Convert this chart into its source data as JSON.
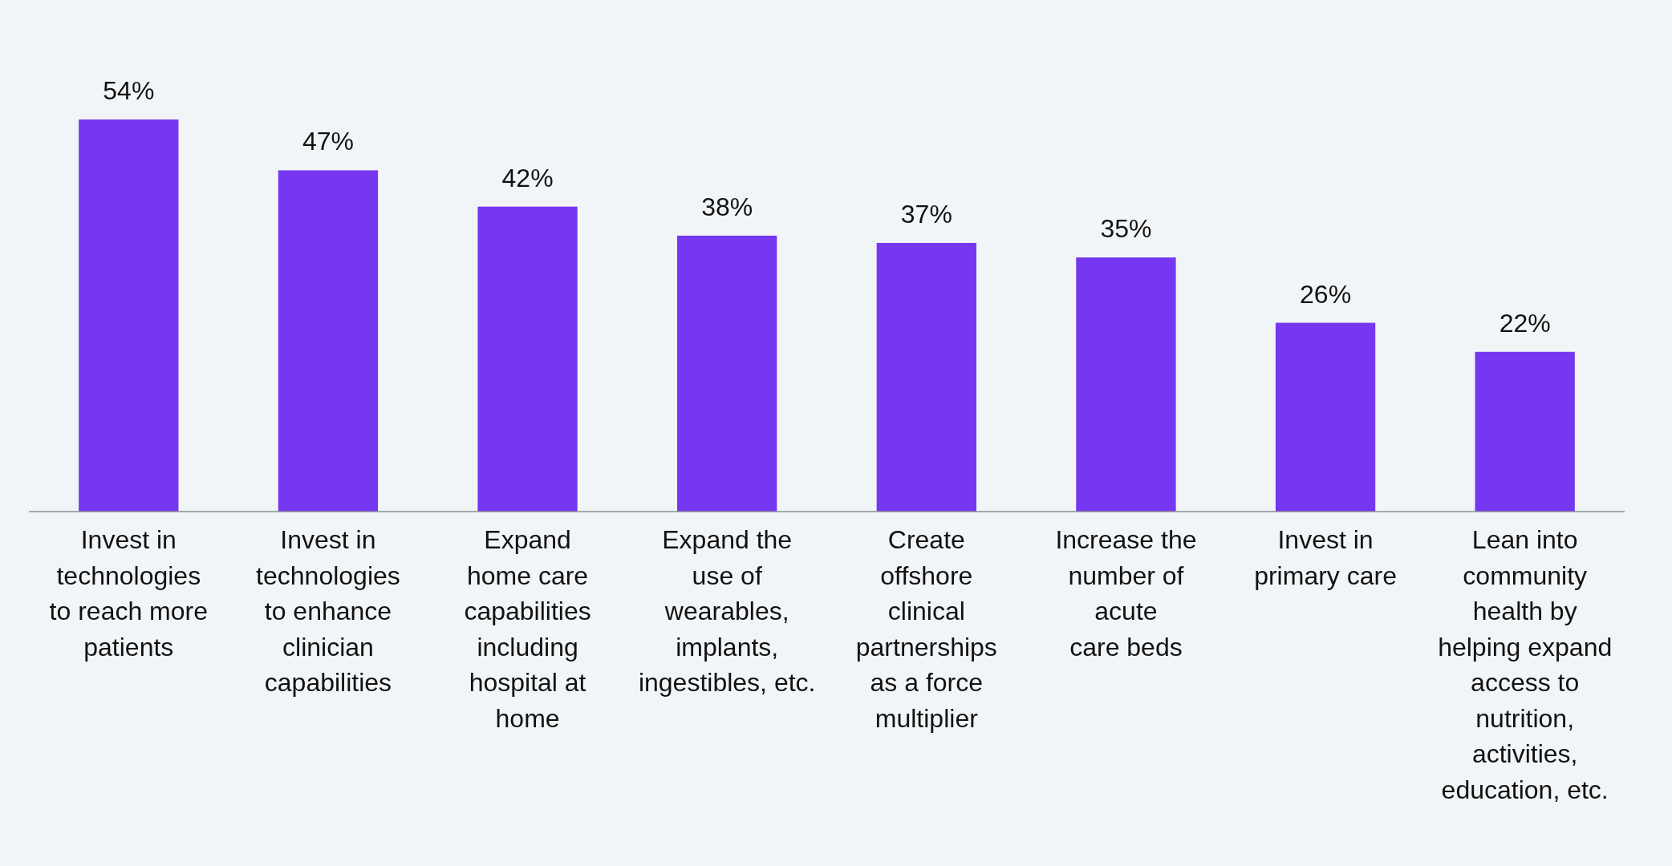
{
  "chart_data": {
    "type": "bar",
    "categories": [
      "Invest in\ntechnologies\nto reach more\npatients",
      "Invest in\ntechnologies\nto enhance\nclinician\ncapabilities",
      "Expand\nhome care\ncapabilities\nincluding\nhospital at\nhome",
      "Expand the\nuse of\nwearables,\nimplants,\ningestibles, etc.",
      "Create\noffshore\nclinical\npartnerships\nas a force\nmultiplier",
      "Increase the\nnumber of\nacute\ncare beds",
      "Invest in\nprimary care",
      "Lean into\ncommunity\nhealth by\nhelping expand\naccess to\nnutrition,\nactivities,\neducation, etc."
    ],
    "values": [
      54,
      47,
      42,
      38,
      37,
      35,
      26,
      22
    ],
    "value_labels": [
      "54%",
      "47%",
      "42%",
      "38%",
      "37%",
      "35%",
      "26%",
      "22%"
    ],
    "color": "#7537f0",
    "tick_labels": "x"
  }
}
